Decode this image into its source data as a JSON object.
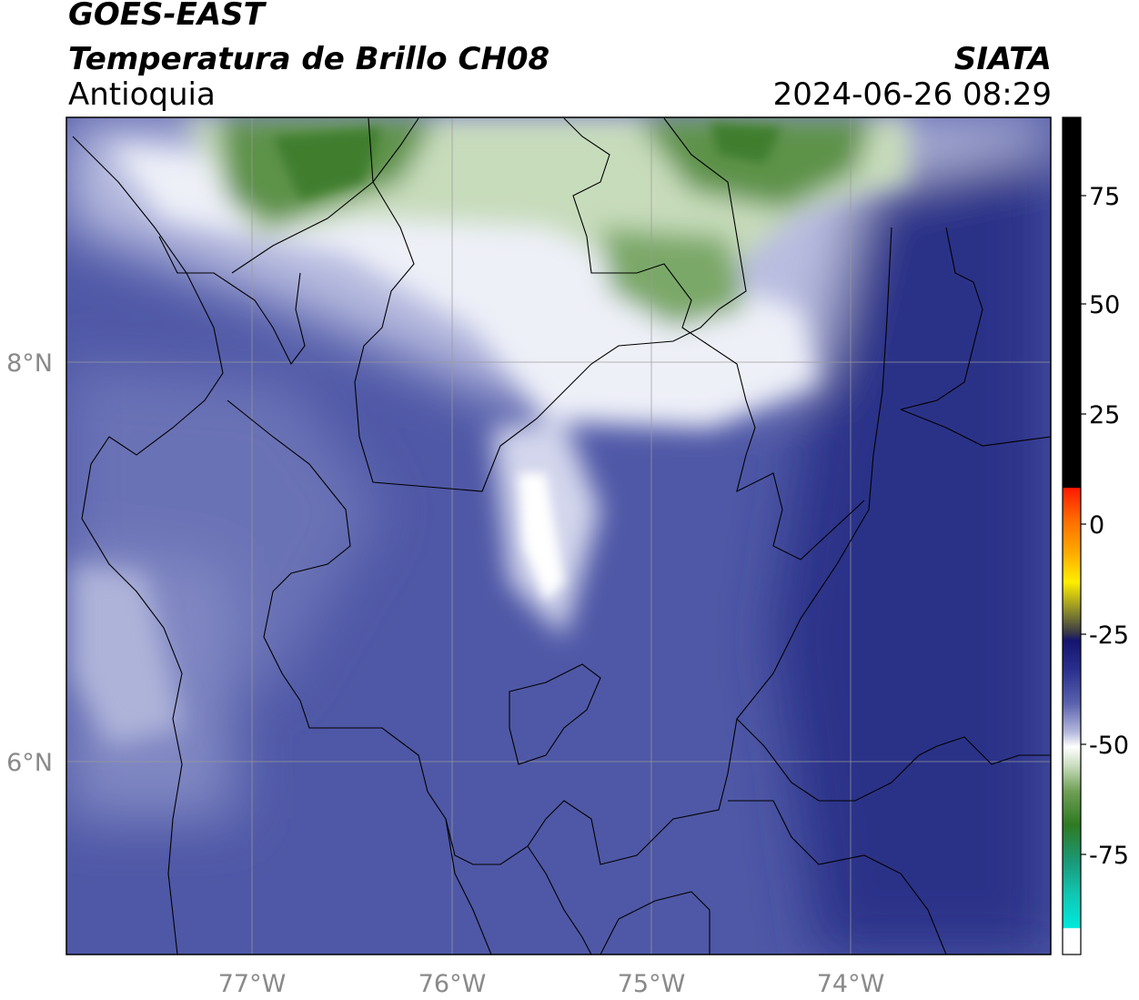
{
  "header": {
    "satellite": "GOES-EAST",
    "product": "Temperatura de Brillo CH08",
    "region": "Antioquia",
    "brand": "SIATA",
    "datetime": "2024-06-26 08:29"
  },
  "axes": {
    "lat_labels": [
      "8°N",
      "6°N"
    ],
    "lon_labels": [
      "77°W",
      "76°W",
      "75°W",
      "74°W"
    ]
  },
  "colorbar": {
    "ticks": [
      "75",
      "50",
      "25",
      "0",
      "-25",
      "-50",
      "-75"
    ],
    "colors": {
      "black": "#000000",
      "red": "#ff1a00",
      "orange": "#ff9900",
      "yellow": "#ffee00",
      "olive": "#6a6a3a",
      "navy": "#1c237e",
      "mid_blue": "#4e57a6",
      "pale_lavender": "#d9dcef",
      "white": "#ffffff",
      "pale_green": "#cfe3c4",
      "green": "#4b8f33",
      "teal": "#1aa88a",
      "cyan": "#00e5d8"
    }
  }
}
